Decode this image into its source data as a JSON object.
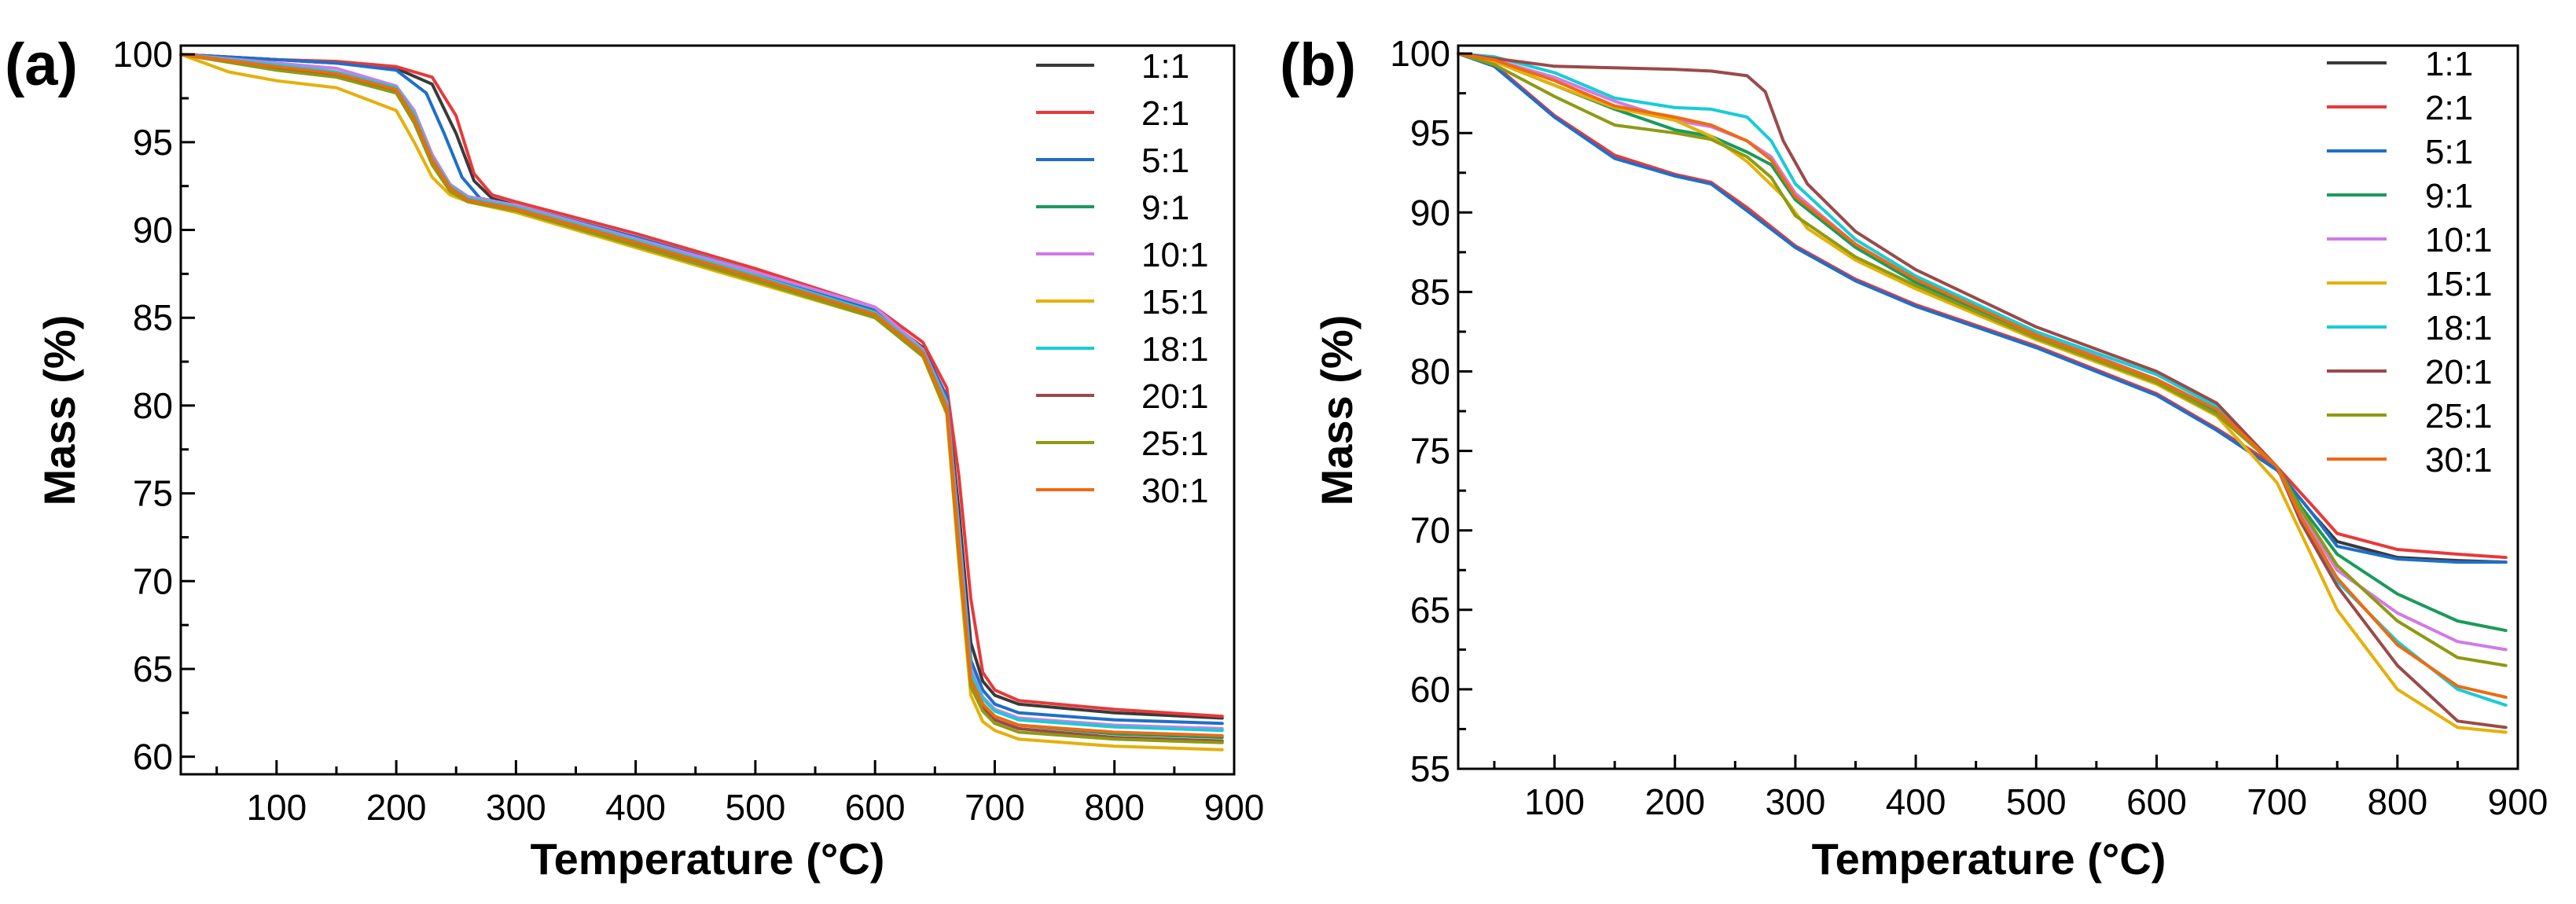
{
  "figure": {
    "colors": [
      "#3a3a3a",
      "#e8393a",
      "#1f6fc8",
      "#1a9a5c",
      "#cf7be6",
      "#e5b00a",
      "#16cdd6",
      "#9a4a4a",
      "#8e9a12",
      "#ef6a12"
    ]
  },
  "chart_data": [
    {
      "type": "line",
      "panel": "(a)",
      "xlabel": "Temperature (°C)",
      "ylabel": "Mass (%)",
      "xlim": [
        20,
        900
      ],
      "ylim": [
        59,
        100.5
      ],
      "xticks": [
        100,
        200,
        300,
        400,
        500,
        600,
        700,
        800,
        900
      ],
      "yticks": [
        60,
        65,
        70,
        75,
        80,
        85,
        90,
        95,
        100
      ],
      "legend_position": "top-right",
      "series": [
        {
          "name": "1:1",
          "x": [
            20,
            100,
            150,
            200,
            230,
            250,
            265,
            280,
            300,
            400,
            500,
            600,
            640,
            660,
            670,
            680,
            690,
            700,
            720,
            800,
            890
          ],
          "y": [
            100,
            99.7,
            99.5,
            99.2,
            98.3,
            95.5,
            92.8,
            91.8,
            91.4,
            89.6,
            87.6,
            85.4,
            83.3,
            80.5,
            74,
            66.5,
            64.3,
            63.5,
            63,
            62.5,
            62.2
          ]
        },
        {
          "name": "2:1",
          "x": [
            20,
            100,
            150,
            200,
            230,
            250,
            265,
            280,
            300,
            400,
            500,
            600,
            640,
            660,
            670,
            680,
            690,
            700,
            720,
            800,
            890
          ],
          "y": [
            100,
            99.7,
            99.6,
            99.3,
            98.7,
            96.5,
            93.2,
            92,
            91.6,
            89.8,
            87.8,
            85.6,
            83.6,
            81,
            76,
            69,
            64.8,
            63.8,
            63.2,
            62.7,
            62.3
          ]
        },
        {
          "name": "5:1",
          "x": [
            20,
            100,
            150,
            200,
            225,
            240,
            255,
            270,
            300,
            400,
            500,
            600,
            640,
            660,
            670,
            680,
            690,
            700,
            720,
            800,
            890
          ],
          "y": [
            100,
            99.7,
            99.5,
            99.1,
            97.8,
            95.5,
            93,
            91.8,
            91.4,
            89.6,
            87.6,
            85.4,
            83.2,
            80.5,
            73,
            65.5,
            63.8,
            63,
            62.5,
            62.1,
            61.9
          ]
        },
        {
          "name": "9:1",
          "x": [
            20,
            100,
            150,
            200,
            215,
            230,
            245,
            260,
            300,
            400,
            500,
            600,
            640,
            660,
            670,
            680,
            690,
            700,
            720,
            800,
            890
          ],
          "y": [
            100,
            99.3,
            98.9,
            98,
            96.5,
            94,
            92.5,
            91.8,
            91.2,
            89.3,
            87.3,
            85.2,
            83,
            80,
            72,
            64.5,
            63,
            62.3,
            61.8,
            61.3,
            61.1
          ]
        },
        {
          "name": "10:1",
          "x": [
            20,
            100,
            150,
            200,
            215,
            230,
            245,
            260,
            300,
            400,
            500,
            600,
            640,
            660,
            670,
            680,
            690,
            700,
            720,
            800,
            890
          ],
          "y": [
            100,
            99.5,
            99.2,
            98.2,
            96.8,
            94.3,
            92.6,
            91.9,
            91.4,
            89.5,
            87.6,
            85.6,
            83.2,
            80.2,
            73,
            65,
            63.4,
            62.7,
            62.2,
            61.8,
            61.6
          ]
        },
        {
          "name": "15:1",
          "x": [
            20,
            60,
            100,
            150,
            200,
            215,
            230,
            245,
            260,
            300,
            400,
            500,
            600,
            640,
            660,
            670,
            680,
            690,
            700,
            720,
            800,
            890
          ],
          "y": [
            100,
            99,
            98.5,
            98.1,
            96.8,
            95,
            93,
            92,
            91.6,
            91,
            89,
            87,
            85,
            82.8,
            79.5,
            71,
            63.5,
            62,
            61.5,
            61,
            60.6,
            60.4
          ]
        },
        {
          "name": "18:1",
          "x": [
            20,
            100,
            150,
            200,
            215,
            230,
            245,
            260,
            300,
            400,
            500,
            600,
            640,
            660,
            670,
            680,
            690,
            700,
            720,
            800,
            890
          ],
          "y": [
            100,
            99.4,
            99,
            98.1,
            96.6,
            94.1,
            92.5,
            91.8,
            91.3,
            89.4,
            87.4,
            85.3,
            83.1,
            80.1,
            72.5,
            64.8,
            63.3,
            62.6,
            62.1,
            61.7,
            61.5
          ]
        },
        {
          "name": "20:1",
          "x": [
            20,
            100,
            150,
            200,
            215,
            230,
            245,
            260,
            300,
            400,
            500,
            600,
            640,
            660,
            670,
            680,
            690,
            700,
            720,
            800,
            890
          ],
          "y": [
            100,
            99.2,
            98.8,
            97.9,
            96.3,
            93.9,
            92.4,
            91.7,
            91.2,
            89.2,
            87.2,
            85.1,
            82.9,
            79.8,
            71.8,
            64.3,
            62.8,
            62.1,
            61.6,
            61.1,
            60.9
          ]
        },
        {
          "name": "25:1",
          "x": [
            20,
            100,
            150,
            200,
            215,
            230,
            245,
            260,
            300,
            400,
            500,
            600,
            640,
            660,
            670,
            680,
            690,
            700,
            720,
            800,
            890
          ],
          "y": [
            100,
            99.1,
            98.7,
            97.8,
            96.1,
            93.7,
            92.2,
            91.6,
            91.1,
            89.1,
            87.1,
            85,
            82.8,
            79.6,
            71.5,
            64,
            62.6,
            61.9,
            61.4,
            61,
            60.8
          ]
        },
        {
          "name": "30:1",
          "x": [
            20,
            100,
            150,
            200,
            215,
            230,
            245,
            260,
            300,
            400,
            500,
            600,
            640,
            660,
            670,
            680,
            690,
            700,
            720,
            800,
            890
          ],
          "y": [
            100,
            99.3,
            98.9,
            98,
            96.4,
            94,
            92.4,
            91.7,
            91.2,
            89.3,
            87.3,
            85.2,
            83,
            79.9,
            72,
            64.4,
            63,
            62.3,
            61.8,
            61.4,
            61.2
          ]
        }
      ]
    },
    {
      "type": "line",
      "panel": "(b)",
      "xlabel": "Temperature (°C)",
      "ylabel": "Mass (%)",
      "xlim": [
        20,
        900
      ],
      "ylim": [
        55,
        100.5
      ],
      "xticks": [
        100,
        200,
        300,
        400,
        500,
        600,
        700,
        800,
        900
      ],
      "yticks": [
        55,
        60,
        65,
        70,
        75,
        80,
        85,
        90,
        95,
        100
      ],
      "legend_position": "top-right",
      "series": [
        {
          "name": "1:1",
          "x": [
            20,
            50,
            100,
            150,
            200,
            230,
            260,
            300,
            350,
            400,
            500,
            600,
            650,
            700,
            730,
            750,
            800,
            850,
            890
          ],
          "y": [
            100,
            99.2,
            96,
            93.5,
            92.3,
            91.8,
            90.2,
            87.8,
            85.7,
            84.1,
            81.5,
            78.5,
            76.3,
            73.8,
            71,
            69.3,
            68.3,
            68.1,
            68
          ]
        },
        {
          "name": "2:1",
          "x": [
            20,
            50,
            100,
            150,
            200,
            230,
            260,
            300,
            350,
            400,
            500,
            600,
            650,
            700,
            730,
            750,
            800,
            850,
            890
          ],
          "y": [
            100,
            99.3,
            96.1,
            93.6,
            92.4,
            91.9,
            90.3,
            87.9,
            85.8,
            84.2,
            81.6,
            78.6,
            76.4,
            74,
            71.5,
            69.8,
            68.8,
            68.5,
            68.3
          ]
        },
        {
          "name": "5:1",
          "x": [
            20,
            50,
            100,
            150,
            200,
            230,
            260,
            300,
            350,
            400,
            500,
            600,
            650,
            700,
            730,
            750,
            800,
            850,
            890
          ],
          "y": [
            100,
            99.2,
            96,
            93.4,
            92.3,
            91.8,
            90.1,
            87.8,
            85.7,
            84.1,
            81.5,
            78.5,
            76.3,
            73.8,
            71,
            69,
            68.2,
            68,
            68
          ]
        },
        {
          "name": "9:1",
          "x": [
            20,
            50,
            100,
            150,
            200,
            230,
            260,
            280,
            300,
            350,
            400,
            500,
            600,
            650,
            700,
            720,
            750,
            800,
            850,
            890
          ],
          "y": [
            100,
            99.5,
            98,
            96.5,
            95.2,
            94.8,
            93.8,
            93,
            90.8,
            87.8,
            85.6,
            82.2,
            79.4,
            77.5,
            74,
            71.5,
            68.5,
            66,
            64.3,
            63.7
          ]
        },
        {
          "name": "10:1",
          "x": [
            20,
            50,
            100,
            150,
            200,
            230,
            260,
            280,
            300,
            350,
            400,
            500,
            600,
            650,
            700,
            720,
            750,
            800,
            850,
            890
          ],
          "y": [
            100,
            99.6,
            98.5,
            97,
            95.8,
            95.4,
            94.5,
            93.5,
            91.2,
            88,
            85.8,
            82.4,
            79.5,
            77.6,
            74,
            71,
            67.5,
            64.8,
            63,
            62.5
          ]
        },
        {
          "name": "15:1",
          "x": [
            20,
            50,
            100,
            150,
            200,
            230,
            260,
            290,
            310,
            350,
            400,
            500,
            600,
            650,
            700,
            720,
            750,
            800,
            850,
            890
          ],
          "y": [
            100,
            99.5,
            98,
            96.6,
            95.8,
            94.8,
            93.2,
            91,
            89,
            87,
            85.2,
            82,
            79.2,
            77.2,
            73,
            69.8,
            65,
            60,
            57.6,
            57.3
          ]
        },
        {
          "name": "18:1",
          "x": [
            20,
            50,
            100,
            150,
            200,
            230,
            260,
            280,
            300,
            350,
            400,
            500,
            600,
            650,
            700,
            720,
            750,
            800,
            850,
            890
          ],
          "y": [
            100,
            99.8,
            98.8,
            97.2,
            96.6,
            96.5,
            96,
            94.5,
            91.8,
            88.3,
            86,
            82.5,
            79.8,
            77.8,
            74,
            70.8,
            66.8,
            63,
            60,
            59
          ]
        },
        {
          "name": "20:1",
          "x": [
            20,
            50,
            100,
            150,
            200,
            230,
            260,
            275,
            290,
            310,
            350,
            400,
            500,
            600,
            650,
            700,
            720,
            750,
            800,
            850,
            890
          ],
          "y": [
            100,
            99.7,
            99.2,
            99.1,
            99,
            98.9,
            98.6,
            97.6,
            94.5,
            91.8,
            88.8,
            86.4,
            82.8,
            80,
            78,
            74,
            70.5,
            66.5,
            61.5,
            58,
            57.6
          ]
        },
        {
          "name": "25:1",
          "x": [
            20,
            50,
            100,
            150,
            200,
            230,
            260,
            280,
            300,
            350,
            400,
            500,
            600,
            650,
            700,
            720,
            750,
            800,
            850,
            890
          ],
          "y": [
            100,
            99.3,
            97.3,
            95.5,
            95,
            94.6,
            93.5,
            92.2,
            89.8,
            87.2,
            85.4,
            82.1,
            79.3,
            77.3,
            74,
            71.3,
            67.8,
            64.3,
            62,
            61.5
          ]
        },
        {
          "name": "30:1",
          "x": [
            20,
            50,
            100,
            150,
            200,
            230,
            260,
            280,
            300,
            350,
            400,
            500,
            600,
            650,
            700,
            720,
            750,
            800,
            850,
            890
          ],
          "y": [
            100,
            99.6,
            98.3,
            96.7,
            96,
            95.5,
            94.5,
            93.3,
            91,
            88,
            85.8,
            82.3,
            79.5,
            77.6,
            74,
            70.8,
            67,
            62.8,
            60.2,
            59.5
          ]
        }
      ]
    }
  ]
}
